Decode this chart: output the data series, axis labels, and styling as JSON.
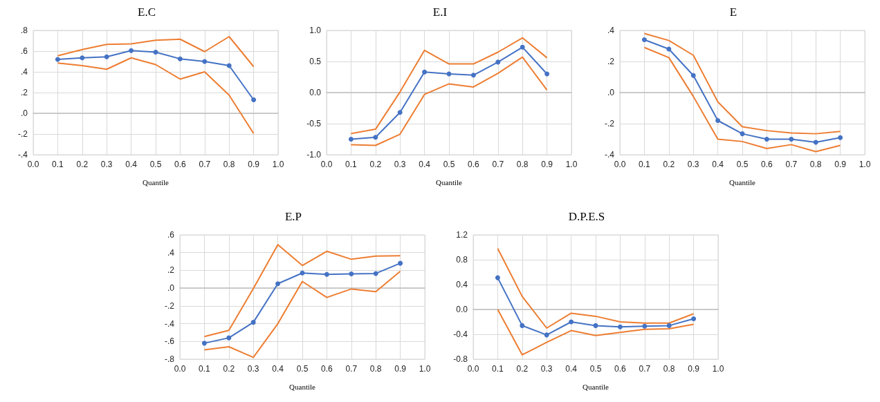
{
  "chart_data": [
    {
      "type": "line",
      "title": "E.C",
      "xlabel": "Quantile",
      "grid": true,
      "x": [
        0.1,
        0.2,
        0.3,
        0.4,
        0.5,
        0.6,
        0.7,
        0.8,
        0.9
      ],
      "xlim": [
        0,
        1
      ],
      "xticks": [
        {
          "value": 0,
          "label": "0.0"
        },
        {
          "value": 0.1,
          "label": "0.1"
        },
        {
          "value": 0.2,
          "label": "0.2"
        },
        {
          "value": 0.3,
          "label": "0.3"
        },
        {
          "value": 0.4,
          "label": "0.4"
        },
        {
          "value": 0.5,
          "label": "0.5"
        },
        {
          "value": 0.6,
          "label": "0.6"
        },
        {
          "value": 0.7,
          "label": "0.7"
        },
        {
          "value": 0.8,
          "label": "0.8"
        },
        {
          "value": 0.9,
          "label": "0.9"
        },
        {
          "value": 1,
          "label": "1.0"
        }
      ],
      "ylim": [
        -0.4,
        0.8
      ],
      "yticks": [
        {
          "value": -0.4,
          "label": "-.4"
        },
        {
          "value": -0.2,
          "label": "-.2"
        },
        {
          "value": 0,
          "label": ".0"
        },
        {
          "value": 0.2,
          "label": ".2"
        },
        {
          "value": 0.4,
          "label": ".4"
        },
        {
          "value": 0.6,
          "label": ".6"
        },
        {
          "value": 0.8,
          "label": ".8"
        }
      ],
      "series": [
        {
          "color": "#4472c4",
          "marker": "circle",
          "values": [
            0.52,
            0.535,
            0.545,
            0.605,
            0.59,
            0.525,
            0.5,
            0.46,
            0.13
          ]
        },
        {
          "color": "#ed7d31",
          "marker": "none",
          "values": [
            0.555,
            0.615,
            0.665,
            0.67,
            0.705,
            0.715,
            0.595,
            0.74,
            0.45
          ]
        },
        {
          "color": "#ed7d31",
          "marker": "none",
          "values": [
            0.485,
            0.46,
            0.425,
            0.535,
            0.47,
            0.33,
            0.4,
            0.175,
            -0.195
          ]
        }
      ]
    },
    {
      "type": "line",
      "title": "E.I",
      "xlabel": "Quantile",
      "grid": true,
      "x": [
        0.1,
        0.2,
        0.3,
        0.4,
        0.5,
        0.6,
        0.7,
        0.8,
        0.9
      ],
      "xlim": [
        0,
        1
      ],
      "xticks": [
        {
          "value": 0,
          "label": "0.0"
        },
        {
          "value": 0.1,
          "label": "0.1"
        },
        {
          "value": 0.2,
          "label": "0.2"
        },
        {
          "value": 0.3,
          "label": "0.3"
        },
        {
          "value": 0.4,
          "label": "0.4"
        },
        {
          "value": 0.5,
          "label": "0.5"
        },
        {
          "value": 0.6,
          "label": "0.6"
        },
        {
          "value": 0.7,
          "label": "0.7"
        },
        {
          "value": 0.8,
          "label": "0.8"
        },
        {
          "value": 0.9,
          "label": "0.9"
        },
        {
          "value": 1,
          "label": "1.0"
        }
      ],
      "ylim": [
        -1,
        1
      ],
      "yticks": [
        {
          "value": -1,
          "label": "-1.0"
        },
        {
          "value": -0.5,
          "label": "-0.5"
        },
        {
          "value": 0,
          "label": "0.0"
        },
        {
          "value": 0.5,
          "label": "0.5"
        },
        {
          "value": 1,
          "label": "1.0"
        }
      ],
      "series": [
        {
          "color": "#4472c4",
          "marker": "circle",
          "values": [
            -0.75,
            -0.72,
            -0.32,
            0.33,
            0.3,
            0.28,
            0.49,
            0.73,
            0.3
          ]
        },
        {
          "color": "#ed7d31",
          "marker": "none",
          "values": [
            -0.66,
            -0.59,
            0.01,
            0.68,
            0.46,
            0.46,
            0.65,
            0.88,
            0.56
          ]
        },
        {
          "color": "#ed7d31",
          "marker": "none",
          "values": [
            -0.84,
            -0.85,
            -0.67,
            -0.03,
            0.14,
            0.09,
            0.31,
            0.57,
            0.04
          ]
        }
      ]
    },
    {
      "type": "line",
      "title": "E",
      "xlabel": "Quantile",
      "grid": true,
      "x": [
        0.1,
        0.2,
        0.3,
        0.4,
        0.5,
        0.6,
        0.7,
        0.8,
        0.9
      ],
      "xlim": [
        0,
        1
      ],
      "xticks": [
        {
          "value": 0,
          "label": "0.0"
        },
        {
          "value": 0.1,
          "label": "0.1"
        },
        {
          "value": 0.2,
          "label": "0.2"
        },
        {
          "value": 0.3,
          "label": "0.3"
        },
        {
          "value": 0.4,
          "label": "0.4"
        },
        {
          "value": 0.5,
          "label": "0.5"
        },
        {
          "value": 0.6,
          "label": "0.6"
        },
        {
          "value": 0.7,
          "label": "0.7"
        },
        {
          "value": 0.8,
          "label": "0.8"
        },
        {
          "value": 0.9,
          "label": "0.9"
        },
        {
          "value": 1,
          "label": "1.0"
        }
      ],
      "ylim": [
        -0.4,
        0.4
      ],
      "yticks": [
        {
          "value": -0.4,
          "label": "-.4"
        },
        {
          "value": -0.2,
          "label": "-.2"
        },
        {
          "value": 0,
          "label": ".0"
        },
        {
          "value": 0.2,
          "label": ".2"
        },
        {
          "value": 0.4,
          "label": ".4"
        }
      ],
      "series": [
        {
          "color": "#4472c4",
          "marker": "circle",
          "values": [
            0.34,
            0.28,
            0.11,
            -0.18,
            -0.265,
            -0.3,
            -0.3,
            -0.32,
            -0.29
          ]
        },
        {
          "color": "#ed7d31",
          "marker": "none",
          "values": [
            0.38,
            0.335,
            0.24,
            -0.06,
            -0.22,
            -0.245,
            -0.26,
            -0.265,
            -0.25
          ]
        },
        {
          "color": "#ed7d31",
          "marker": "none",
          "values": [
            0.29,
            0.225,
            -0.025,
            -0.3,
            -0.315,
            -0.36,
            -0.335,
            -0.38,
            -0.34
          ]
        }
      ]
    },
    {
      "type": "line",
      "title": "E.P",
      "xlabel": "Quantile",
      "grid": true,
      "x": [
        0.1,
        0.2,
        0.3,
        0.4,
        0.5,
        0.6,
        0.7,
        0.8,
        0.9
      ],
      "xlim": [
        0,
        1
      ],
      "xticks": [
        {
          "value": 0,
          "label": "0.0"
        },
        {
          "value": 0.1,
          "label": "0.1"
        },
        {
          "value": 0.2,
          "label": "0.2"
        },
        {
          "value": 0.3,
          "label": "0.3"
        },
        {
          "value": 0.4,
          "label": "0.4"
        },
        {
          "value": 0.5,
          "label": "0.5"
        },
        {
          "value": 0.6,
          "label": "0.6"
        },
        {
          "value": 0.7,
          "label": "0.7"
        },
        {
          "value": 0.8,
          "label": "0.8"
        },
        {
          "value": 0.9,
          "label": "0.9"
        },
        {
          "value": 1,
          "label": "1.0"
        }
      ],
      "ylim": [
        -0.8,
        0.6
      ],
      "yticks": [
        {
          "value": -0.8,
          "label": "-.8"
        },
        {
          "value": -0.6,
          "label": "-.6"
        },
        {
          "value": -0.4,
          "label": "-.4"
        },
        {
          "value": -0.2,
          "label": "-.2"
        },
        {
          "value": 0,
          "label": ".0"
        },
        {
          "value": 0.2,
          "label": ".2"
        },
        {
          "value": 0.4,
          "label": ".4"
        },
        {
          "value": 0.6,
          "label": ".6"
        }
      ],
      "series": [
        {
          "color": "#4472c4",
          "marker": "circle",
          "values": [
            -0.62,
            -0.56,
            -0.385,
            0.05,
            0.17,
            0.155,
            0.16,
            0.165,
            0.28
          ]
        },
        {
          "color": "#ed7d31",
          "marker": "none",
          "values": [
            -0.545,
            -0.475,
            -0.005,
            0.49,
            0.255,
            0.415,
            0.325,
            0.36,
            0.365
          ]
        },
        {
          "color": "#ed7d31",
          "marker": "none",
          "values": [
            -0.695,
            -0.66,
            -0.78,
            -0.4,
            0.075,
            -0.105,
            -0.01,
            -0.04,
            0.19
          ]
        }
      ]
    },
    {
      "type": "line",
      "title": "D.P.E.S",
      "xlabel": "Quantile",
      "grid": true,
      "x": [
        0.1,
        0.2,
        0.3,
        0.4,
        0.5,
        0.6,
        0.7,
        0.8,
        0.9
      ],
      "xlim": [
        0,
        1
      ],
      "xticks": [
        {
          "value": 0,
          "label": "0.0"
        },
        {
          "value": 0.1,
          "label": "0.1"
        },
        {
          "value": 0.2,
          "label": "0.2"
        },
        {
          "value": 0.3,
          "label": "0.3"
        },
        {
          "value": 0.4,
          "label": "0.4"
        },
        {
          "value": 0.5,
          "label": "0.5"
        },
        {
          "value": 0.6,
          "label": "0.6"
        },
        {
          "value": 0.7,
          "label": "0.7"
        },
        {
          "value": 0.8,
          "label": "0.8"
        },
        {
          "value": 0.9,
          "label": "0.9"
        },
        {
          "value": 1,
          "label": "1.0"
        }
      ],
      "ylim": [
        -0.8,
        1.2
      ],
      "yticks": [
        {
          "value": -0.8,
          "label": "-0.8"
        },
        {
          "value": -0.4,
          "label": "-0.4"
        },
        {
          "value": 0,
          "label": "0.0"
        },
        {
          "value": 0.4,
          "label": "0.4"
        },
        {
          "value": 0.8,
          "label": "0.8"
        },
        {
          "value": 1.2,
          "label": "1.2"
        }
      ],
      "series": [
        {
          "color": "#4472c4",
          "marker": "circle",
          "values": [
            0.51,
            -0.26,
            -0.41,
            -0.2,
            -0.26,
            -0.28,
            -0.27,
            -0.26,
            -0.15
          ]
        },
        {
          "color": "#ed7d31",
          "marker": "none",
          "values": [
            0.98,
            0.21,
            -0.3,
            -0.06,
            -0.11,
            -0.2,
            -0.22,
            -0.22,
            -0.07
          ]
        },
        {
          "color": "#ed7d31",
          "marker": "none",
          "values": [
            0.0,
            -0.73,
            -0.53,
            -0.34,
            -0.42,
            -0.37,
            -0.32,
            -0.31,
            -0.24
          ]
        }
      ]
    }
  ]
}
